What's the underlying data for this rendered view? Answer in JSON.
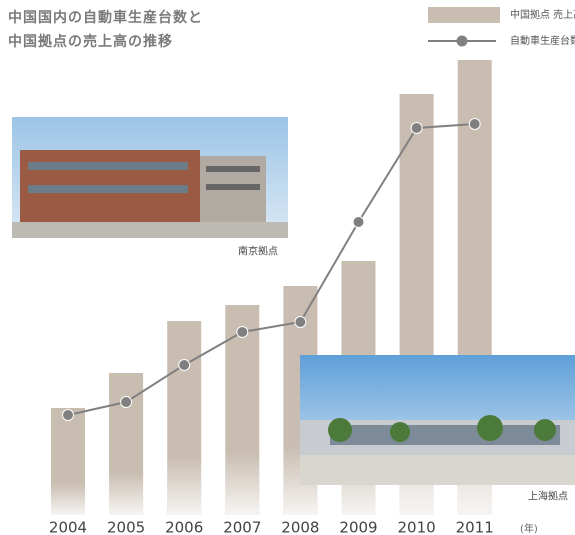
{
  "chart_data": {
    "type": "combo",
    "title_lines": [
      "中国国内の自動車生産台数と",
      "中国拠点の売上高の推移"
    ],
    "x_label": "(年)",
    "categories": [
      "2004",
      "2005",
      "2006",
      "2007",
      "2008",
      "2009",
      "2010",
      "2011"
    ],
    "series": [
      {
        "name": "中国拠点 売上高",
        "type": "bar",
        "color": "#c9bdb1",
        "values": [
          107,
          142,
          194,
          210,
          229,
          254,
          421,
          455
        ]
      },
      {
        "name": "自動車生産台数",
        "type": "line",
        "color": "#808080",
        "values": [
          100,
          113,
          150,
          183,
          193,
          293,
          387,
          391
        ]
      }
    ],
    "annotations": [
      "南京拠点",
      "上海拠点"
    ]
  }
}
